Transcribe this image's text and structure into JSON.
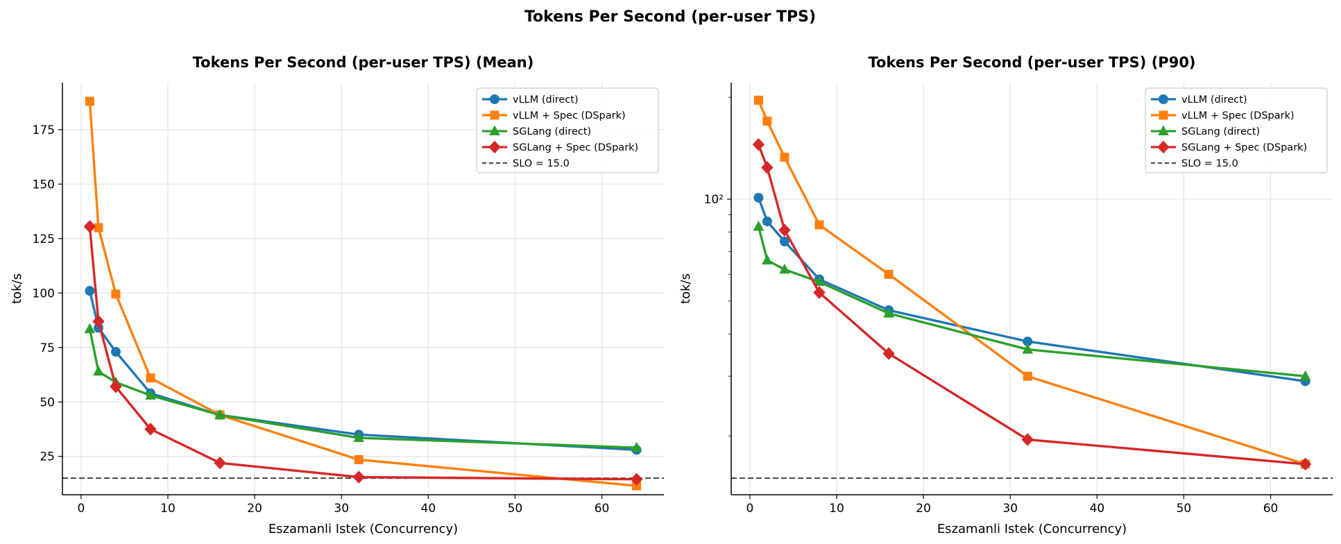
{
  "suptitle": "Tokens Per Second (per-user TPS)",
  "chart_data": [
    {
      "type": "line",
      "title": "Tokens Per Second (per-user TPS) (Mean)",
      "xlabel": "Eszamanli Istek (Concurrency)",
      "ylabel": "tok/s",
      "yscale": "linear",
      "xlim": [
        -2.15,
        67.15
      ],
      "ylim": [
        7.4,
        196.6
      ],
      "xticks": [
        0,
        10,
        20,
        30,
        40,
        50,
        60
      ],
      "yticks": [
        25,
        50,
        75,
        100,
        125,
        150,
        175
      ],
      "ytick_labels": [
        "25",
        "50",
        "75",
        "100",
        "125",
        "150",
        "175"
      ],
      "grid": true,
      "legend_position": "top-right",
      "x": [
        1,
        2,
        4,
        8,
        16,
        32,
        64
      ],
      "series": [
        {
          "name": "vLLM (direct)",
          "color": "#1f77b4",
          "marker": "circle",
          "values": [
            101,
            84,
            73,
            54,
            44,
            35,
            28
          ]
        },
        {
          "name": "vLLM + Spec (DSpark)",
          "color": "#ff7f0e",
          "marker": "square",
          "values": [
            188,
            130,
            99.5,
            61,
            44,
            23.5,
            11.5
          ]
        },
        {
          "name": "SGLang (direct)",
          "color": "#2ca02c",
          "marker": "triangle",
          "values": [
            83.5,
            64,
            59,
            53,
            44,
            33.5,
            29
          ]
        },
        {
          "name": "SGLang + Spec (DSpark)",
          "color": "#d62728",
          "marker": "diamond",
          "values": [
            130.5,
            87,
            57,
            37.5,
            22,
            15.5,
            14.5
          ]
        }
      ],
      "reference_line": {
        "label": "SLO = 15.0",
        "value": 15.0,
        "color": "#444444"
      }
    },
    {
      "type": "line",
      "title": "Tokens Per Second (per-user TPS) (P90)",
      "xlabel": "Eszamanli Istek (Concurrency)",
      "ylabel": "tok/s",
      "yscale": "log",
      "xlim": [
        -2.15,
        67.15
      ],
      "ylim": [
        13.4,
        221
      ],
      "xticks": [
        0,
        10,
        20,
        30,
        40,
        50,
        60
      ],
      "yticks": [
        100
      ],
      "ytick_labels": [
        "10²"
      ],
      "grid": true,
      "legend_position": "top-right",
      "x": [
        1,
        2,
        4,
        8,
        16,
        32,
        64
      ],
      "series": [
        {
          "name": "vLLM (direct)",
          "color": "#1f77b4",
          "marker": "circle",
          "values": [
            101,
            86,
            75,
            58,
            47,
            38,
            29
          ]
        },
        {
          "name": "vLLM + Spec (DSpark)",
          "color": "#ff7f0e",
          "marker": "square",
          "values": [
            196,
            170,
            133,
            84,
            60,
            30,
            16.5
          ]
        },
        {
          "name": "SGLang (direct)",
          "color": "#2ca02c",
          "marker": "triangle",
          "values": [
            83,
            66,
            62,
            57,
            46,
            36,
            30
          ]
        },
        {
          "name": "SGLang + Spec (DSpark)",
          "color": "#d62728",
          "marker": "diamond",
          "values": [
            145,
            124,
            81,
            53,
            35,
            19.5,
            16.5
          ]
        }
      ],
      "reference_line": {
        "label": "SLO = 15.0",
        "value": 15.0,
        "color": "#444444"
      }
    }
  ]
}
